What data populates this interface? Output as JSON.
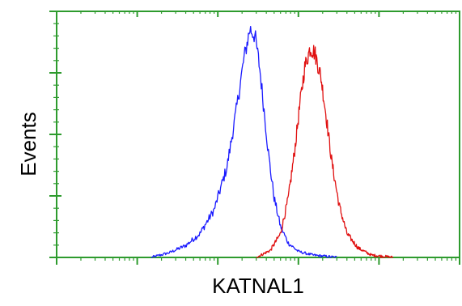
{
  "chart_data": {
    "type": "line",
    "title": "",
    "xlabel": "KATNAL1",
    "ylabel": "Events",
    "x_scale": "log",
    "xlim": [
      1,
      100000
    ],
    "ylim": [
      0,
      1.0
    ],
    "grid": false,
    "legend": "none",
    "axis_color": "#2e9b2e",
    "series": [
      {
        "color": "#1a1aff",
        "x": [
          15,
          25,
          40,
          60,
          90,
          130,
          170,
          210,
          250,
          290,
          330,
          380,
          430,
          500,
          600,
          750,
          1000,
          1500,
          3000
        ],
        "y": [
          0.0,
          0.02,
          0.05,
          0.1,
          0.2,
          0.38,
          0.62,
          0.83,
          0.96,
          0.93,
          0.8,
          0.6,
          0.42,
          0.25,
          0.13,
          0.06,
          0.025,
          0.01,
          0.0
        ]
      },
      {
        "color": "#e01010",
        "x": [
          300,
          450,
          600,
          750,
          900,
          1050,
          1200,
          1400,
          1600,
          1900,
          2200,
          2600,
          3200,
          4000,
          5500,
          8000,
          15000
        ],
        "y": [
          0.0,
          0.03,
          0.1,
          0.25,
          0.45,
          0.65,
          0.8,
          0.88,
          0.86,
          0.76,
          0.6,
          0.4,
          0.22,
          0.1,
          0.04,
          0.01,
          0.0
        ]
      }
    ]
  }
}
